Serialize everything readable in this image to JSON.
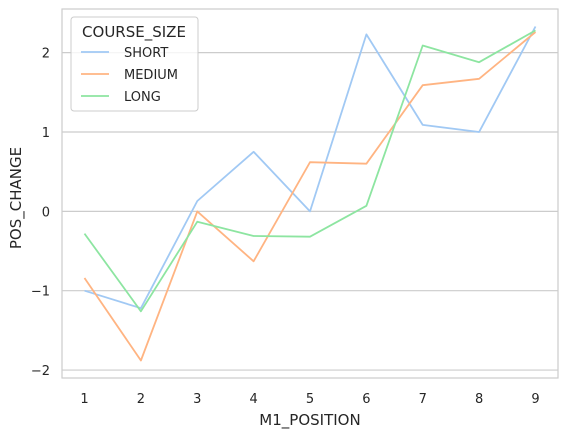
{
  "chart_data": {
    "type": "line",
    "title": "",
    "xlabel": "M1_POSITION",
    "ylabel": "POS_CHANGE",
    "x": [
      1,
      2,
      3,
      4,
      5,
      6,
      7,
      8,
      9
    ],
    "xlim": [
      0.6,
      9.4
    ],
    "ylim": [
      -2.1,
      2.55
    ],
    "xticks": [
      "1",
      "2",
      "3",
      "4",
      "5",
      "6",
      "7",
      "8",
      "9"
    ],
    "yticks": [
      "−2",
      "−1",
      "0",
      "1",
      "2"
    ],
    "ytick_values": [
      -2,
      -1,
      0,
      1,
      2
    ],
    "grid": "horizontal",
    "legend": {
      "title": "COURSE_SIZE",
      "placement": "top-left"
    },
    "series": [
      {
        "name": "SHORT",
        "color": "#a1c9f4",
        "values": [
          -1.0,
          -1.22,
          0.13,
          0.75,
          0.0,
          2.23,
          1.09,
          1.0,
          2.33
        ]
      },
      {
        "name": "MEDIUM",
        "color": "#ffb482",
        "values": [
          -0.84,
          -1.88,
          0.0,
          -0.63,
          0.62,
          0.6,
          1.59,
          1.67,
          2.26
        ]
      },
      {
        "name": "LONG",
        "color": "#8de5a1",
        "values": [
          -0.28,
          -1.26,
          -0.13,
          -0.31,
          -0.32,
          0.07,
          2.09,
          1.88,
          2.28
        ]
      }
    ]
  }
}
